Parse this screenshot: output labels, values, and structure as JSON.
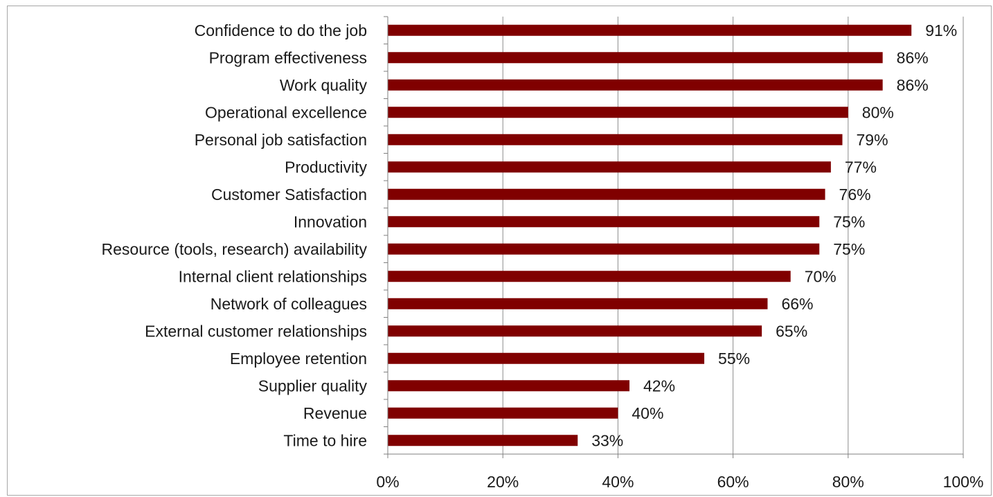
{
  "chart_data": {
    "type": "bar",
    "orientation": "horizontal",
    "categories": [
      "Confidence to do the job",
      "Program effectiveness",
      "Work quality",
      "Operational excellence",
      "Personal job satisfaction",
      "Productivity",
      "Customer Satisfaction",
      "Innovation",
      "Resource (tools, research) availability",
      "Internal client relationships",
      "Network of colleagues",
      "External customer relationships",
      "Employee retention",
      "Supplier quality",
      "Revenue",
      "Time to hire"
    ],
    "values": [
      91,
      86,
      86,
      80,
      79,
      77,
      76,
      75,
      75,
      70,
      66,
      65,
      55,
      42,
      40,
      33
    ],
    "data_labels": [
      "91%",
      "86%",
      "86%",
      "80%",
      "79%",
      "77%",
      "76%",
      "75%",
      "75%",
      "70%",
      "66%",
      "65%",
      "55%",
      "42%",
      "40%",
      "33%"
    ],
    "x_ticks": [
      "0%",
      "20%",
      "40%",
      "60%",
      "80%",
      "100%"
    ],
    "xlim": [
      0,
      100
    ],
    "bar_color": "#800000",
    "gridline_color": "#8c8c8c",
    "axis_color": "#7f7f7f",
    "grid": true,
    "legend": false
  }
}
